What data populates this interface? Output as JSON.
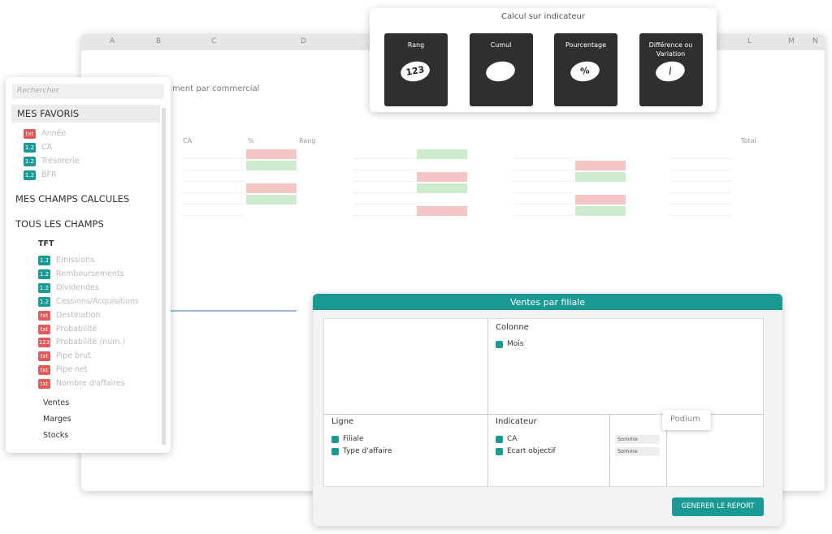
{
  "sheet": {
    "columns": [
      "A",
      "B",
      "C",
      "D",
      "L",
      "M",
      "N"
    ],
    "subtitle": "ment par commercial",
    "headers": [
      "CA",
      "%",
      "Rang",
      "Total"
    ]
  },
  "calc": {
    "title": "Calcul sur indicateur",
    "cards": [
      {
        "label": "Rang",
        "icon": "123"
      },
      {
        "label": "Cumul",
        "icon": ""
      },
      {
        "label": "Pourcentage",
        "icon": "%"
      },
      {
        "label": "Différence ou Variation",
        "icon": "/"
      }
    ]
  },
  "sidebar": {
    "search": "Rechercher",
    "favorites": {
      "title": "MES FAVORIS",
      "items": [
        {
          "badge": "txt",
          "label": "Année"
        },
        {
          "badge": "1.2",
          "label": "CA"
        },
        {
          "badge": "1.2",
          "label": "Trésorerie"
        },
        {
          "badge": "1.2",
          "label": "BFR"
        }
      ]
    },
    "calculated": "MES CHAMPS CALCULES",
    "all": "TOUS LES CHAMPS",
    "folder": "TFT",
    "fields": [
      {
        "badge": "1.2",
        "label": "Emissions"
      },
      {
        "badge": "1.2",
        "label": "Remboursements"
      },
      {
        "badge": "1.2",
        "label": "Dividendes"
      },
      {
        "badge": "1.2",
        "label": "Cessions/Acquisitions"
      },
      {
        "badge": "txt",
        "label": "Destination"
      },
      {
        "badge": "txt",
        "label": "Probabilité"
      },
      {
        "badge": "123",
        "label": "Probabilité (num.)"
      },
      {
        "badge": "txt",
        "label": "Pipe brut"
      },
      {
        "badge": "txt",
        "label": "Pipe net"
      },
      {
        "badge": "txt",
        "label": "Nombre d'affaires"
      }
    ],
    "folders": [
      "Ventes",
      "Marges",
      "Stocks"
    ]
  },
  "report": {
    "title": "Ventes par filiale",
    "column": {
      "title": "Colonne",
      "items": [
        "Mois"
      ]
    },
    "row": {
      "title": "Ligne",
      "items": [
        "Filiale",
        "Type d'affaire"
      ]
    },
    "indicator": {
      "title": "Indicateur",
      "items": [
        "CA",
        "Ecart objectif"
      ],
      "aggregations": [
        "Somme",
        "Somme"
      ]
    },
    "tooltip": "Podium",
    "button": "GENERER LE REPORT"
  }
}
